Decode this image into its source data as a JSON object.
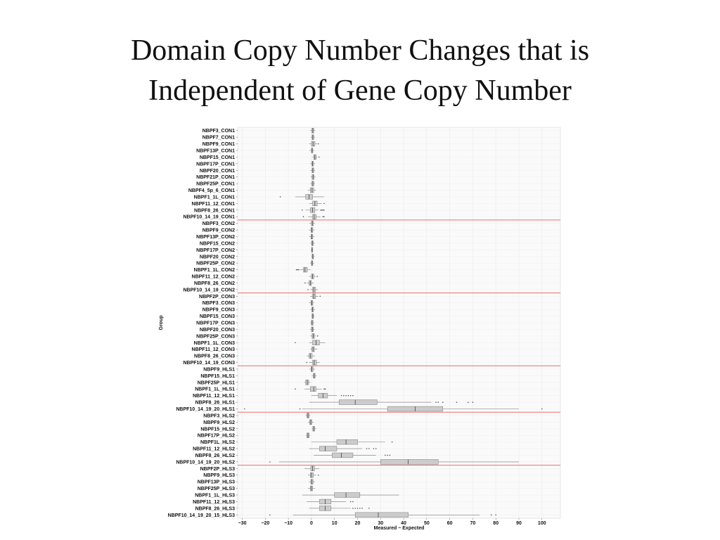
{
  "slide": {
    "title_line1": "Domain Copy Number  Changes that is",
    "title_line2": "Independent of Gene Copy Number"
  },
  "chart_data": {
    "type": "boxplot",
    "orientation": "horizontal",
    "xlabel": "Measured − Expected",
    "ylabel": "Group",
    "xlim": [
      -32,
      108
    ],
    "xticks": [
      -30,
      -20,
      -10,
      0,
      10,
      20,
      30,
      40,
      50,
      60,
      70,
      80,
      90,
      100
    ],
    "grid": true,
    "colors": {
      "box_fill": "#cccccc",
      "box_stroke": "#8a8a8a",
      "separator": "#e8706c",
      "panel": "#fafafa",
      "grid": "#eeeeee"
    },
    "separators_after": [
      "NBPF10_14_19_CON1",
      "NBPF10_14_19_CON2",
      "NBPF10_14_19_CON3",
      "NBPF10_14_19_20_HLS1",
      "NBPF10_14_19_20_HLS2"
    ],
    "groups": [
      {
        "name": "NBPF3_CON1",
        "min": -0.5,
        "q1": 0.2,
        "median": 0.6,
        "q3": 1,
        "max": 1.6,
        "outliers": []
      },
      {
        "name": "NBPF7_CON1",
        "min": -0.3,
        "q1": 0.3,
        "median": 0.6,
        "q3": 1,
        "max": 1.5,
        "outliers": []
      },
      {
        "name": "NBPF9_CON1",
        "min": -1,
        "q1": 0,
        "median": 0.7,
        "q3": 1.5,
        "max": 2.5,
        "outliers": [
          3
        ]
      },
      {
        "name": "NBPF13P_CON1",
        "min": -0.8,
        "q1": 0,
        "median": 0.3,
        "q3": 0.6,
        "max": 1.2,
        "outliers": []
      },
      {
        "name": "NBPF15_CON1",
        "min": 0.5,
        "q1": 1,
        "median": 1.5,
        "q3": 2,
        "max": 2.5,
        "outliers": [
          3.3
        ]
      },
      {
        "name": "NBPF17P_CON1",
        "min": -0.5,
        "q1": 0.2,
        "median": 0.5,
        "q3": 0.9,
        "max": 1.5,
        "outliers": []
      },
      {
        "name": "NBPF20_CON1",
        "min": -0.5,
        "q1": 0.3,
        "median": 0.6,
        "q3": 1,
        "max": 1.6,
        "outliers": []
      },
      {
        "name": "NBPF21P_CON1",
        "min": -0.3,
        "q1": 0.3,
        "median": 0.7,
        "q3": 1.1,
        "max": 1.7,
        "outliers": []
      },
      {
        "name": "NBPF25P_CON1",
        "min": -0.5,
        "q1": 0.2,
        "median": 0.6,
        "q3": 1,
        "max": 1.5,
        "outliers": []
      },
      {
        "name": "NBPF4_5p_6_CON1",
        "min": -1.5,
        "q1": -0.5,
        "median": 0.3,
        "q3": 1,
        "max": 2,
        "outliers": []
      },
      {
        "name": "NBPF1_1L_CON1",
        "min": -7,
        "q1": -2.5,
        "median": -1,
        "q3": 0.5,
        "max": 5.5,
        "outliers": [
          -13.5
        ]
      },
      {
        "name": "NBPF11_12_CON1",
        "min": -1,
        "q1": 0.5,
        "median": 1.5,
        "q3": 2.5,
        "max": 4.5,
        "outliers": [
          5.5
        ]
      },
      {
        "name": "NBPF8_26_CON1",
        "min": -2.5,
        "q1": -0.5,
        "median": 0.5,
        "q3": 1.5,
        "max": 3,
        "outliers": [
          -4,
          4,
          4.5,
          5,
          5.5
        ]
      },
      {
        "name": "NBPF10_14_19_CON1",
        "min": -1.5,
        "q1": 0.5,
        "median": 1.2,
        "q3": 2,
        "max": 4,
        "outliers": [
          -3.5,
          5,
          5.5
        ]
      },
      {
        "name": "NBPF3_CON2",
        "min": -0.8,
        "q1": 0,
        "median": 0.4,
        "q3": 0.8,
        "max": 1.5,
        "outliers": []
      },
      {
        "name": "NBPF9_CON2",
        "min": -1,
        "q1": -0.2,
        "median": 0.2,
        "q3": 0.6,
        "max": 1.3,
        "outliers": []
      },
      {
        "name": "NBPF13P_CON2",
        "min": -1,
        "q1": -0.2,
        "median": 0.2,
        "q3": 0.6,
        "max": 1.3,
        "outliers": []
      },
      {
        "name": "NBPF15_CON2",
        "min": -0.5,
        "q1": 0.1,
        "median": 0.4,
        "q3": 0.8,
        "max": 1.4,
        "outliers": []
      },
      {
        "name": "NBPF17P_CON2",
        "min": -0.2,
        "q1": 0.1,
        "median": 0.3,
        "q3": 0.5,
        "max": 0.8,
        "outliers": []
      },
      {
        "name": "NBPF20_CON2",
        "min": 0,
        "q1": 0.3,
        "median": 0.6,
        "q3": 0.9,
        "max": 1.3,
        "outliers": []
      },
      {
        "name": "NBPF25P_CON2",
        "min": -0.6,
        "q1": 0,
        "median": 0.3,
        "q3": 0.6,
        "max": 1.1,
        "outliers": []
      },
      {
        "name": "NBPF1_1L_CON2",
        "min": -5,
        "q1": -3.5,
        "median": -2.8,
        "q3": -1.8,
        "max": -0.5,
        "outliers": [
          -6.5,
          -6,
          -5.5
        ]
      },
      {
        "name": "NBPF11_12_CON2",
        "min": -1,
        "q1": 0,
        "median": 0.5,
        "q3": 1,
        "max": 1.8,
        "outliers": [
          2.5
        ]
      },
      {
        "name": "NBPF8_26_CON2",
        "min": -2,
        "q1": -1,
        "median": -0.5,
        "q3": 0,
        "max": 1,
        "outliers": [
          -2.8
        ]
      },
      {
        "name": "NBPF10_14_19_CON2",
        "min": -0.5,
        "q1": 0.5,
        "median": 1,
        "q3": 1.8,
        "max": 2.8,
        "outliers": [
          -1.5
        ]
      },
      {
        "name": "NBPF2P_CON3",
        "min": -0.5,
        "q1": 0.5,
        "median": 1,
        "q3": 1.8,
        "max": 3,
        "outliers": [
          3.8
        ]
      },
      {
        "name": "NBPF3_CON3",
        "min": -1,
        "q1": -0.2,
        "median": 0.2,
        "q3": 0.6,
        "max": 1.2,
        "outliers": []
      },
      {
        "name": "NBPF9_CON3",
        "min": -0.5,
        "q1": 0.2,
        "median": 0.5,
        "q3": 0.9,
        "max": 1.5,
        "outliers": []
      },
      {
        "name": "NBPF15_CON3",
        "min": 0,
        "q1": 0.3,
        "median": 0.6,
        "q3": 0.9,
        "max": 1.3,
        "outliers": []
      },
      {
        "name": "NBPF17P_CON3",
        "min": -0.5,
        "q1": 0,
        "median": 0.3,
        "q3": 0.7,
        "max": 1.2,
        "outliers": []
      },
      {
        "name": "NBPF20_CON3",
        "min": -0.5,
        "q1": 0,
        "median": 0.4,
        "q3": 0.8,
        "max": 1.3,
        "outliers": []
      },
      {
        "name": "NBPF25P_CON3",
        "min": -0.5,
        "q1": 0.3,
        "median": 0.8,
        "q3": 1.3,
        "max": 2,
        "outliers": [
          2.7
        ]
      },
      {
        "name": "NBPF1_1L_CON3",
        "min": -1,
        "q1": 0.5,
        "median": 2,
        "q3": 3.5,
        "max": 6,
        "outliers": [
          -7
        ]
      },
      {
        "name": "NBPF11_12_CON3",
        "min": -0.5,
        "q1": 0.2,
        "median": 0.7,
        "q3": 1.3,
        "max": 2.5,
        "outliers": []
      },
      {
        "name": "NBPF8_26_CON3",
        "min": -2,
        "q1": -1,
        "median": -0.5,
        "q3": 0.3,
        "max": 1.5,
        "outliers": []
      },
      {
        "name": "NBPF10_14_19_CON3",
        "min": -1,
        "q1": 0.5,
        "median": 1.2,
        "q3": 2.2,
        "max": 3.5,
        "outliers": [
          -2
        ]
      },
      {
        "name": "NBPF9_HLS1",
        "min": -0.8,
        "q1": -0.2,
        "median": 0.2,
        "q3": 0.7,
        "max": 1.5,
        "outliers": []
      },
      {
        "name": "NBPF15_HLS1",
        "min": 0.2,
        "q1": 0.8,
        "median": 1.2,
        "q3": 1.6,
        "max": 2.2,
        "outliers": []
      },
      {
        "name": "NBPF25P_HLS1",
        "min": -3,
        "q1": -2.5,
        "median": -1.8,
        "q3": -1.2,
        "max": -0.5,
        "outliers": []
      },
      {
        "name": "NBPF1_1L_HLS1",
        "min": -3,
        "q1": -0.5,
        "median": 1,
        "q3": 2,
        "max": 4.5,
        "outliers": [
          -7,
          5.5,
          6
        ]
      },
      {
        "name": "NBPF11_12_HLS1",
        "min": 0,
        "q1": 3,
        "median": 5,
        "q3": 7,
        "max": 11,
        "outliers": [
          13,
          14,
          15,
          16,
          17,
          18
        ]
      },
      {
        "name": "NBPF8_26_HLS1",
        "min": -1,
        "q1": 12,
        "median": 19,
        "q3": 28.5,
        "max": 52,
        "outliers": [
          54,
          55,
          57,
          63,
          68,
          70
        ]
      },
      {
        "name": "NBPF10_14_19_20_HLS1",
        "min": -4,
        "q1": 33,
        "median": 45,
        "q3": 57,
        "max": 90,
        "outliers": [
          -29,
          -5,
          100
        ]
      },
      {
        "name": "NBPF3_HLS2",
        "min": -2.5,
        "q1": -2,
        "median": -1.5,
        "q3": -1,
        "max": -0.5,
        "outliers": []
      },
      {
        "name": "NBPF9_HLS2",
        "min": -1.5,
        "q1": -0.8,
        "median": -0.3,
        "q3": 0.2,
        "max": 1,
        "outliers": []
      },
      {
        "name": "NBPF15_HLS2",
        "min": 0.2,
        "q1": 0.6,
        "median": 1,
        "q3": 1.4,
        "max": 2,
        "outliers": []
      },
      {
        "name": "NBPF17P_HLS2",
        "min": -2.5,
        "q1": -2,
        "median": -1.5,
        "q3": -1,
        "max": -0.5,
        "outliers": []
      },
      {
        "name": "NBPF1L_HLS2",
        "min": 0,
        "q1": 11,
        "median": 15,
        "q3": 20,
        "max": 32,
        "outliers": [
          35
        ]
      },
      {
        "name": "NBPF11_12_HLS2",
        "min": -1,
        "q1": 3.5,
        "median": 6,
        "q3": 11,
        "max": 22,
        "outliers": [
          24,
          25,
          27,
          28
        ]
      },
      {
        "name": "NBPF8_26_HLS2",
        "min": 1,
        "q1": 9,
        "median": 13,
        "q3": 18,
        "max": 28,
        "outliers": [
          32,
          33,
          34
        ]
      },
      {
        "name": "NBPF10_14_19_20_HLS2",
        "min": -14,
        "q1": 30,
        "median": 42,
        "q3": 55,
        "max": 90,
        "outliers": [
          -18
        ]
      },
      {
        "name": "NBPF2P_HLS3",
        "min": -3,
        "q1": -0.3,
        "median": 0.5,
        "q3": 1.3,
        "max": 3.5,
        "outliers": []
      },
      {
        "name": "NBPF9_HLS3",
        "min": -1.5,
        "q1": -0.5,
        "median": 0,
        "q3": 0.8,
        "max": 2,
        "outliers": [
          3
        ]
      },
      {
        "name": "NBPF13P_HLS3",
        "min": -1,
        "q1": -0.3,
        "median": 0.2,
        "q3": 0.7,
        "max": 1.5,
        "outliers": []
      },
      {
        "name": "NBPF25P_HLS3",
        "min": -1.5,
        "q1": -0.5,
        "median": 0,
        "q3": 0.5,
        "max": 1.5,
        "outliers": []
      },
      {
        "name": "NBPF1_1L_HLS3",
        "min": -4,
        "q1": 10,
        "median": 15,
        "q3": 21,
        "max": 38,
        "outliers": []
      },
      {
        "name": "NBPF11_12_HLS3",
        "min": -2,
        "q1": 3.5,
        "median": 6,
        "q3": 8.5,
        "max": 15,
        "outliers": [
          17,
          18
        ]
      },
      {
        "name": "NBPF8_26_HLS3",
        "min": -1,
        "q1": 3.5,
        "median": 6,
        "q3": 8.5,
        "max": 17,
        "outliers": [
          18,
          19,
          20,
          21,
          22,
          25
        ]
      },
      {
        "name": "NBPF10_14_19_20_15_HLS3",
        "min": -8,
        "q1": 19,
        "median": 29,
        "q3": 42,
        "max": 73,
        "outliers": [
          -18,
          78,
          80
        ]
      }
    ]
  }
}
